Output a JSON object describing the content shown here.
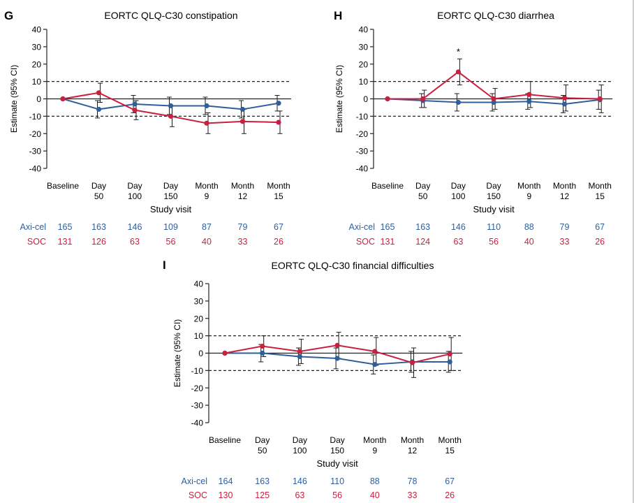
{
  "colors": {
    "axicel": "#2e5f9b",
    "soc": "#c8213f",
    "axis": "#222222"
  },
  "figure": {
    "xlabel": "Study visit",
    "ylabel": "Estimate (95% CI)",
    "tick_labels": [
      [
        "Baseline"
      ],
      [
        "Day",
        "50"
      ],
      [
        "Day",
        "100"
      ],
      [
        "Day",
        "150"
      ],
      [
        "Month",
        "9"
      ],
      [
        "Month",
        "12"
      ],
      [
        "Month",
        "15"
      ]
    ],
    "arm_labels": [
      "Axi-cel",
      "SOC"
    ]
  },
  "chart_data": [
    {
      "letter": "G",
      "type": "line",
      "title": "EORTC QLQ-C30 constipation",
      "xlabel": "Study visit",
      "ylabel": "Estimate (95% CI)",
      "categories": [
        "Baseline",
        "Day 50",
        "Day 100",
        "Day 150",
        "Month 9",
        "Month 12",
        "Month 15"
      ],
      "ylim": [
        -40,
        40
      ],
      "yticks": [
        40,
        30,
        20,
        10,
        0,
        -10,
        -20,
        -30,
        -40
      ],
      "reference_lines": [
        10,
        -10
      ],
      "series": [
        {
          "name": "Axi-cel",
          "color": "#2e5f9b",
          "values": [
            0,
            -6,
            -3,
            -4,
            -4,
            -6,
            -2.5
          ],
          "ci": [
            null,
            [
              -11,
              -1
            ],
            [
              -8,
              2
            ],
            [
              -9,
              1
            ],
            [
              -9,
              1
            ],
            [
              -11,
              -1
            ],
            [
              -7,
              2
            ]
          ],
          "n": [
            165,
            163,
            146,
            109,
            87,
            79,
            67
          ]
        },
        {
          "name": "SOC",
          "color": "#c8213f",
          "values": [
            0,
            3.5,
            -6.5,
            -10,
            -14,
            -13,
            -13.5
          ],
          "ci": [
            null,
            [
              -2,
              9
            ],
            [
              -12,
              -1
            ],
            [
              -16,
              -4
            ],
            [
              -20,
              -8
            ],
            [
              -20,
              -6
            ],
            [
              -20,
              -7
            ]
          ],
          "n": [
            131,
            126,
            63,
            56,
            40,
            33,
            26
          ]
        }
      ]
    },
    {
      "letter": "H",
      "type": "line",
      "title": "EORTC QLQ-C30 diarrhea",
      "xlabel": "Study visit",
      "ylabel": "Estimate (95% CI)",
      "categories": [
        "Baseline",
        "Day 50",
        "Day 100",
        "Day 150",
        "Month 9",
        "Month 12",
        "Month 15"
      ],
      "ylim": [
        -40,
        40
      ],
      "yticks": [
        40,
        30,
        20,
        10,
        0,
        -10,
        -20,
        -30,
        -40
      ],
      "reference_lines": [
        10,
        -10
      ],
      "annotations": [
        {
          "x": "Day 100",
          "text": "*"
        }
      ],
      "series": [
        {
          "name": "Axi-cel",
          "color": "#2e5f9b",
          "values": [
            0,
            -1,
            -2,
            -2,
            -1.5,
            -3,
            -0.5
          ],
          "ci": [
            null,
            [
              -5,
              3
            ],
            [
              -7,
              3
            ],
            [
              -7,
              3
            ],
            [
              -6,
              3
            ],
            [
              -8,
              2
            ],
            [
              -6,
              5
            ]
          ],
          "n": [
            165,
            163,
            146,
            110,
            88,
            79,
            67
          ]
        },
        {
          "name": "SOC",
          "color": "#c8213f",
          "values": [
            0,
            0,
            15.5,
            0,
            2.5,
            0.5,
            0
          ],
          "ci": [
            null,
            [
              -5,
              5
            ],
            [
              8,
              23
            ],
            [
              -6,
              6
            ],
            [
              -5,
              10
            ],
            [
              -7,
              8
            ],
            [
              -8,
              8
            ]
          ],
          "n": [
            131,
            124,
            63,
            56,
            40,
            33,
            26
          ]
        }
      ]
    },
    {
      "letter": "I",
      "type": "line",
      "title": "EORTC QLQ-C30 financial difficulties",
      "xlabel": "Study visit",
      "ylabel": "Estimate (95% CI)",
      "categories": [
        "Baseline",
        "Day 50",
        "Day 100",
        "Day 150",
        "Month 9",
        "Month 12",
        "Month 15"
      ],
      "ylim": [
        -40,
        40
      ],
      "yticks": [
        40,
        30,
        20,
        10,
        0,
        -10,
        -20,
        -30,
        -40
      ],
      "reference_lines": [
        10,
        -10
      ],
      "series": [
        {
          "name": "Axi-cel",
          "color": "#2e5f9b",
          "values": [
            0,
            0,
            -2,
            -3,
            -6.5,
            -5,
            -5
          ],
          "ci": [
            null,
            [
              -5,
              5
            ],
            [
              -7,
              3
            ],
            [
              -9,
              3
            ],
            [
              -12,
              -1
            ],
            [
              -11,
              1
            ],
            [
              -11,
              1
            ]
          ],
          "n": [
            164,
            163,
            146,
            110,
            88,
            78,
            67
          ]
        },
        {
          "name": "SOC",
          "color": "#c8213f",
          "values": [
            0,
            4,
            1,
            4.5,
            1,
            -5.5,
            -0.5
          ],
          "ci": [
            null,
            [
              -2,
              10
            ],
            [
              -6,
              8
            ],
            [
              -3,
              12
            ],
            [
              -7,
              9
            ],
            [
              -14,
              3
            ],
            [
              -10,
              9
            ]
          ],
          "n": [
            130,
            125,
            63,
            56,
            40,
            33,
            26
          ]
        }
      ]
    }
  ]
}
